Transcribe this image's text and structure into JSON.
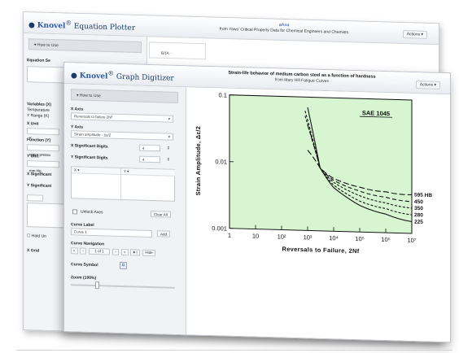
{
  "back_window": {
    "logo_brand": "Knovel",
    "logo_product": "Equation Plotter",
    "title_line1": "aAxa",
    "title_line2": "from Yaws' Critical Property Data for Chemical Engineers and Chemists",
    "actions_label": "Actions ▾",
    "how_to_use": "▾ How to Use",
    "input_value": "B/(A -",
    "labels": [
      "Equation Se",
      "Variables (X)",
      "Temperature",
      "Y Range (K)",
      "X Unit",
      "K",
      "Function (Y)",
      "vapor pressu",
      "Y Unit",
      "mm Hg",
      "X Significant",
      "Y Significant",
      "X ▾",
      "Hold Un",
      "X Grid"
    ]
  },
  "front_window": {
    "logo_brand": "Knovel",
    "logo_product": "Graph Digitizer",
    "title_line1": "Strain-life behavior of medium carbon steel as a function of hardness",
    "title_line2": "from Mary Hill Fatigue Curves",
    "actions_label": "Actions ▾",
    "sidebar": {
      "how_to_use": "▾ How to Use",
      "x_axis_label": "X Axis",
      "x_axis_value": "Reversals to failure 2Nf",
      "y_axis_label": "Y Axis",
      "y_axis_value": "Strain amplitude - Δε/2",
      "x_sig_label": "X Significant Digits",
      "x_sig_value": "4",
      "y_sig_label": "Y Significant Digits",
      "y_sig_value": "4",
      "col_x": "X ▾",
      "col_y": "Y ▾",
      "unlock_axes": "Unlock Axes",
      "clear_all": "Clear All",
      "curve_label_label": "Curve Label",
      "curve_label_value": "Curve 1",
      "add_btn": "Add",
      "curve_nav_label": "Curve Navigation",
      "nav_first": "«",
      "nav_prev": "‹",
      "nav_count": "1 of 1",
      "nav_next": "›",
      "nav_last": "»",
      "nav_next2": "►|",
      "nav_hide": "Hide",
      "curve_symbol_label": "Curve Symbol",
      "curve_symbol": "◘",
      "zoom_label": "Zoom (100%)",
      "zoom_fraction": 0.25
    },
    "chart_data": {
      "type": "line",
      "title": "SAE 1045",
      "xlabel": "Reversals to Failure, 2Nf",
      "ylabel": "Strain Amplitude, Δε/2",
      "x_scale": "log",
      "y_scale": "log",
      "xlim": [
        1,
        10000000
      ],
      "ylim": [
        0.001,
        0.1
      ],
      "x_tick_labels": [
        "1",
        "10",
        "10²",
        "10³",
        "10⁴",
        "10⁵",
        "10⁶",
        "10⁷"
      ],
      "y_tick_labels": [
        "0.1",
        "0.01",
        "0.001"
      ],
      "plot_background": "#d6f5d0",
      "series": [
        {
          "name": "595 HB",
          "dash": "long",
          "x": [
            1000,
            3000,
            10000,
            100000,
            1000000,
            10000000
          ],
          "y": [
            0.016,
            0.0088,
            0.0062,
            0.0047,
            0.0041,
            0.0038
          ]
        },
        {
          "name": "450",
          "dash": "medium",
          "x": [
            1000,
            3000,
            10000,
            100000,
            1000000,
            10000000
          ],
          "y": [
            0.038,
            0.0088,
            0.0058,
            0.0041,
            0.0034,
            0.003
          ]
        },
        {
          "name": "350",
          "dash": "short",
          "x": [
            800,
            3000,
            10000,
            100000,
            1000000,
            10000000
          ],
          "y": [
            0.052,
            0.0088,
            0.0054,
            0.0035,
            0.0028,
            0.0024
          ]
        },
        {
          "name": "280",
          "dash": "short",
          "x": [
            800,
            3000,
            10000,
            100000,
            1000000,
            10000000
          ],
          "y": [
            0.062,
            0.0088,
            0.0049,
            0.0029,
            0.0023,
            0.0019
          ]
        },
        {
          "name": "225",
          "dash": "solid",
          "x": [
            1000,
            3000,
            10000,
            100000,
            1000000,
            10000000
          ],
          "y": [
            0.07,
            0.0088,
            0.0045,
            0.0025,
            0.0019,
            0.0015
          ]
        }
      ]
    }
  }
}
